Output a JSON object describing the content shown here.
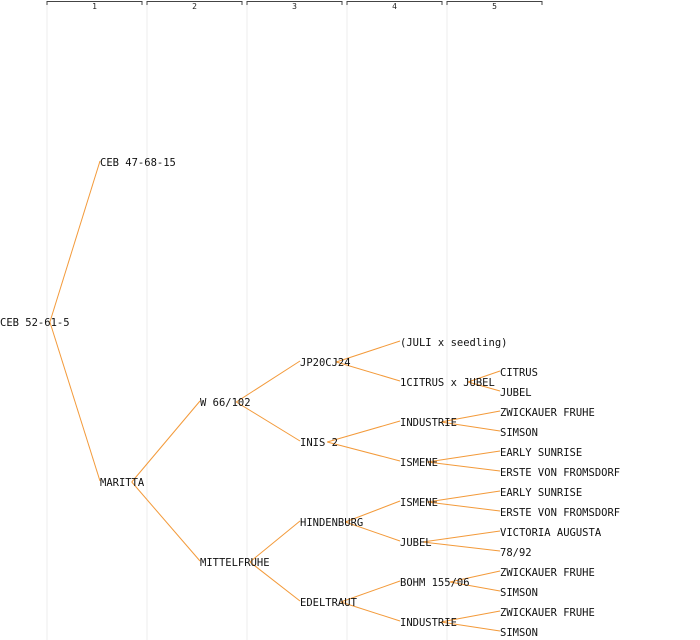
{
  "generations": [
    "1",
    "2",
    "3",
    "4",
    "5"
  ],
  "colors": {
    "edge": "#f39a3a",
    "text": "#111111",
    "column_line": "#ededed",
    "bracket": "#444444"
  },
  "nodes": [
    {
      "id": "root",
      "label": "CEB 52-61-5",
      "gen": 0,
      "row": 16
    },
    {
      "id": "ceb47",
      "label": "CEB 47-68-15",
      "gen": 1,
      "row": 8,
      "parent": "root"
    },
    {
      "id": "maritta",
      "label": "MARITTA",
      "gen": 1,
      "row": 24,
      "parent": "root"
    },
    {
      "id": "w66",
      "label": "W 66/102",
      "gen": 2,
      "row": 20,
      "parent": "maritta"
    },
    {
      "id": "mittelfruhe",
      "label": "MITTELFRUHE",
      "gen": 2,
      "row": 28,
      "parent": "maritta"
    },
    {
      "id": "jp20cj24",
      "label": "JP20CJ24",
      "gen": 3,
      "row": 18,
      "parent": "w66"
    },
    {
      "id": "inis2",
      "label": "INIS 2",
      "gen": 3,
      "row": 22,
      "parent": "w66"
    },
    {
      "id": "hindenburg",
      "label": "HINDENBURG",
      "gen": 3,
      "row": 26,
      "parent": "mittelfruhe"
    },
    {
      "id": "edeltraut",
      "label": "EDELTRAUT",
      "gen": 3,
      "row": 30,
      "parent": "mittelfruhe"
    },
    {
      "id": "juli",
      "label": "(JULI x seedling)",
      "gen": 4,
      "row": 17,
      "parent": "jp20cj24"
    },
    {
      "id": "citrusjubel",
      "label": "1CITRUS x JUBEL",
      "gen": 4,
      "row": 19,
      "parent": "jp20cj24"
    },
    {
      "id": "industrie1",
      "label": "INDUSTRIE",
      "gen": 4,
      "row": 21,
      "parent": "inis2"
    },
    {
      "id": "ismene1",
      "label": "ISMENE",
      "gen": 4,
      "row": 23,
      "parent": "inis2"
    },
    {
      "id": "ismene2",
      "label": "ISMENE",
      "gen": 4,
      "row": 25,
      "parent": "hindenburg"
    },
    {
      "id": "jubel",
      "label": "JUBEL",
      "gen": 4,
      "row": 27,
      "parent": "hindenburg"
    },
    {
      "id": "bohm",
      "label": "BOHM 155/06",
      "gen": 4,
      "row": 29,
      "parent": "edeltraut"
    },
    {
      "id": "industrie2",
      "label": "INDUSTRIE",
      "gen": 4,
      "row": 31,
      "parent": "edeltraut"
    },
    {
      "id": "citrus",
      "label": "CITRUS",
      "gen": 5,
      "row": 18.5,
      "parent": "citrusjubel"
    },
    {
      "id": "jubel5",
      "label": "JUBEL",
      "gen": 5,
      "row": 19.5,
      "parent": "citrusjubel"
    },
    {
      "id": "zwick1",
      "label": "ZWICKAUER FRUHE",
      "gen": 5,
      "row": 20.5,
      "parent": "industrie1"
    },
    {
      "id": "simson1",
      "label": "SIMSON",
      "gen": 5,
      "row": 21.5,
      "parent": "industrie1"
    },
    {
      "id": "early1",
      "label": "EARLY SUNRISE",
      "gen": 5,
      "row": 22.5,
      "parent": "ismene1"
    },
    {
      "id": "erste1",
      "label": "ERSTE VON FROMSDORF",
      "gen": 5,
      "row": 23.5,
      "parent": "ismene1"
    },
    {
      "id": "early2",
      "label": "EARLY SUNRISE",
      "gen": 5,
      "row": 24.5,
      "parent": "ismene2"
    },
    {
      "id": "erste2",
      "label": "ERSTE VON FROMSDORF",
      "gen": 5,
      "row": 25.5,
      "parent": "ismene2"
    },
    {
      "id": "victoria",
      "label": "VICTORIA AUGUSTA",
      "gen": 5,
      "row": 26.5,
      "parent": "jubel"
    },
    {
      "id": "n7892",
      "label": "78/92",
      "gen": 5,
      "row": 27.5,
      "parent": "jubel"
    },
    {
      "id": "zwick2",
      "label": "ZWICKAUER FRUHE",
      "gen": 5,
      "row": 28.5,
      "parent": "bohm"
    },
    {
      "id": "simson2",
      "label": "SIMSON",
      "gen": 5,
      "row": 29.5,
      "parent": "bohm"
    },
    {
      "id": "zwick3",
      "label": "ZWICKAUER FRUHE",
      "gen": 5,
      "row": 30.5,
      "parent": "industrie2"
    },
    {
      "id": "simson3",
      "label": "SIMSON",
      "gen": 5,
      "row": 31.5,
      "parent": "industrie2"
    }
  ]
}
